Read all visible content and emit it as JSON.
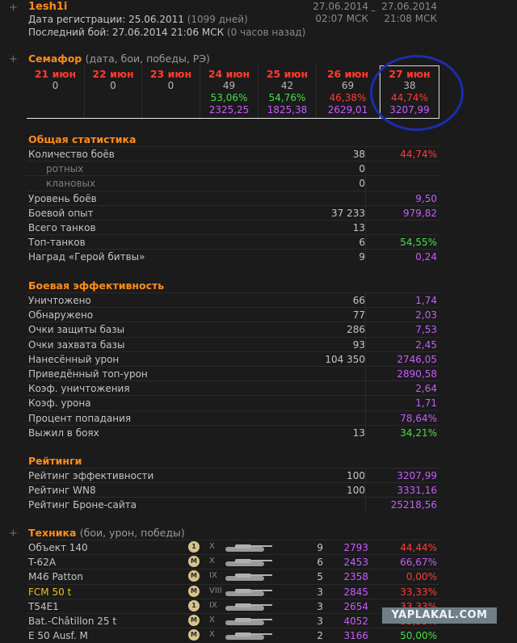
{
  "header": {
    "username": "1esh1i",
    "reg_label": "Дата регистрации: 25.06.2011",
    "reg_days": "(1099 дней)",
    "last_label": "Последний бой: 27.06.2014 21:06 МСК",
    "last_ago": "(0 часов назад)",
    "from_date": "27.06.2014",
    "from_time": "02:07 МСК",
    "to_date": "27.06.2014",
    "to_time": "21:08 МСК",
    "range_dash": "–"
  },
  "semafor": {
    "title": "Семафор",
    "subtitle": "(дата, бои, победы, РЭ)",
    "days": [
      {
        "date": "21 июн",
        "battles": "0",
        "wins": "",
        "re": ""
      },
      {
        "date": "22 июн",
        "battles": "0",
        "wins": "",
        "re": ""
      },
      {
        "date": "23 июн",
        "battles": "0",
        "wins": "",
        "re": ""
      },
      {
        "date": "24 июн",
        "battles": "49",
        "wins": "53,06%",
        "re": "2325,25",
        "wins_color": "green"
      },
      {
        "date": "25 июн",
        "battles": "42",
        "wins": "54,76%",
        "re": "1825,38",
        "wins_color": "green"
      },
      {
        "date": "26 июн",
        "battles": "69",
        "wins": "46,38%",
        "re": "2629,01",
        "wins_color": "red"
      },
      {
        "date": "27 июн",
        "battles": "38",
        "wins": "44,74%",
        "re": "3207,99",
        "wins_color": "red"
      }
    ]
  },
  "general": {
    "title": "Общая статистика",
    "rows": [
      {
        "label": "Количество боёв",
        "value": "38",
        "pct": "44,74%",
        "color": "red",
        "indent": false
      },
      {
        "label": "ротных",
        "value": "0",
        "pct": "",
        "color": "",
        "indent": true
      },
      {
        "label": "клановых",
        "value": "0",
        "pct": "",
        "color": "",
        "indent": true
      },
      {
        "label": "Уровень боёв",
        "value": "",
        "pct": "9,50",
        "color": "purple",
        "indent": false
      },
      {
        "label": "Боевой опыт",
        "value": "37 233",
        "pct": "979,82",
        "color": "purple",
        "indent": false
      },
      {
        "label": "Всего танков",
        "value": "13",
        "pct": "",
        "color": "",
        "indent": false
      },
      {
        "label": "Топ-танков",
        "value": "6",
        "pct": "54,55%",
        "color": "green",
        "indent": false
      },
      {
        "label": "Наград «Герой битвы»",
        "value": "9",
        "pct": "0,24",
        "color": "purple",
        "indent": false
      }
    ]
  },
  "combat": {
    "title": "Боевая эффективность",
    "rows": [
      {
        "label": "Уничтожено",
        "value": "66",
        "pct": "1,74",
        "color": "purple"
      },
      {
        "label": "Обнаружено",
        "value": "77",
        "pct": "2,03",
        "color": "purple"
      },
      {
        "label": "Очки защиты базы",
        "value": "286",
        "pct": "7,53",
        "color": "purple"
      },
      {
        "label": "Очки захвата базы",
        "value": "93",
        "pct": "2,45",
        "color": "purple"
      },
      {
        "label": "Нанесённый урон",
        "value": "104 350",
        "pct": "2746,05",
        "color": "purple"
      },
      {
        "label": "Приведённый топ-урон",
        "value": "",
        "pct": "2890,58",
        "color": "purple"
      },
      {
        "label": "Коэф. уничтожения",
        "value": "",
        "pct": "2,64",
        "color": "purple"
      },
      {
        "label": "Коэф. урона",
        "value": "",
        "pct": "1,71",
        "color": "purple"
      },
      {
        "label": "Процент попадания",
        "value": "",
        "pct": "78,64%",
        "color": "purple"
      },
      {
        "label": "Выжил в боях",
        "value": "13",
        "pct": "34,21%",
        "color": "green"
      }
    ]
  },
  "ratings": {
    "title": "Рейтинги",
    "rows": [
      {
        "label": "Рейтинг эффективности",
        "value": "100",
        "pct": "3207,99",
        "color": "purple"
      },
      {
        "label": "Рейтинг WN8",
        "value": "100",
        "pct": "3331,16",
        "color": "purple"
      },
      {
        "label": "Рейтинг Броне-сайта",
        "value": "",
        "pct": "25218,56",
        "color": "purple"
      }
    ]
  },
  "vehicles": {
    "title": "Техника",
    "subtitle": "(бои, урон, победы)",
    "rows": [
      {
        "name": "Объект 140",
        "badge": "1",
        "tier": "X",
        "battles": "9",
        "damage": "2793",
        "wins": "44,44%",
        "color": "red",
        "gold": false
      },
      {
        "name": "T-62A",
        "badge": "M",
        "tier": "X",
        "battles": "6",
        "damage": "2453",
        "wins": "66,67%",
        "color": "purple",
        "gold": false
      },
      {
        "name": "M46 Patton",
        "badge": "M",
        "tier": "IX",
        "battles": "5",
        "damage": "2358",
        "wins": "0,00%",
        "color": "red",
        "gold": false
      },
      {
        "name": "FCM 50 t",
        "badge": "M",
        "tier": "VIII",
        "battles": "3",
        "damage": "2845",
        "wins": "33,33%",
        "color": "red",
        "gold": true
      },
      {
        "name": "T54E1",
        "badge": "1",
        "tier": "IX",
        "battles": "3",
        "damage": "2654",
        "wins": "33,33%",
        "color": "red",
        "gold": false
      },
      {
        "name": "Bat.-Châtillon 25 t",
        "badge": "M",
        "tier": "X",
        "battles": "3",
        "damage": "4052",
        "wins": "33,33%",
        "color": "red",
        "gold": false
      },
      {
        "name": "E 50 Ausf. M",
        "badge": "M",
        "tier": "X",
        "battles": "2",
        "damage": "3166",
        "wins": "50,00%",
        "color": "green",
        "gold": false
      }
    ]
  },
  "watermark": "YAPLAKAL.COM"
}
